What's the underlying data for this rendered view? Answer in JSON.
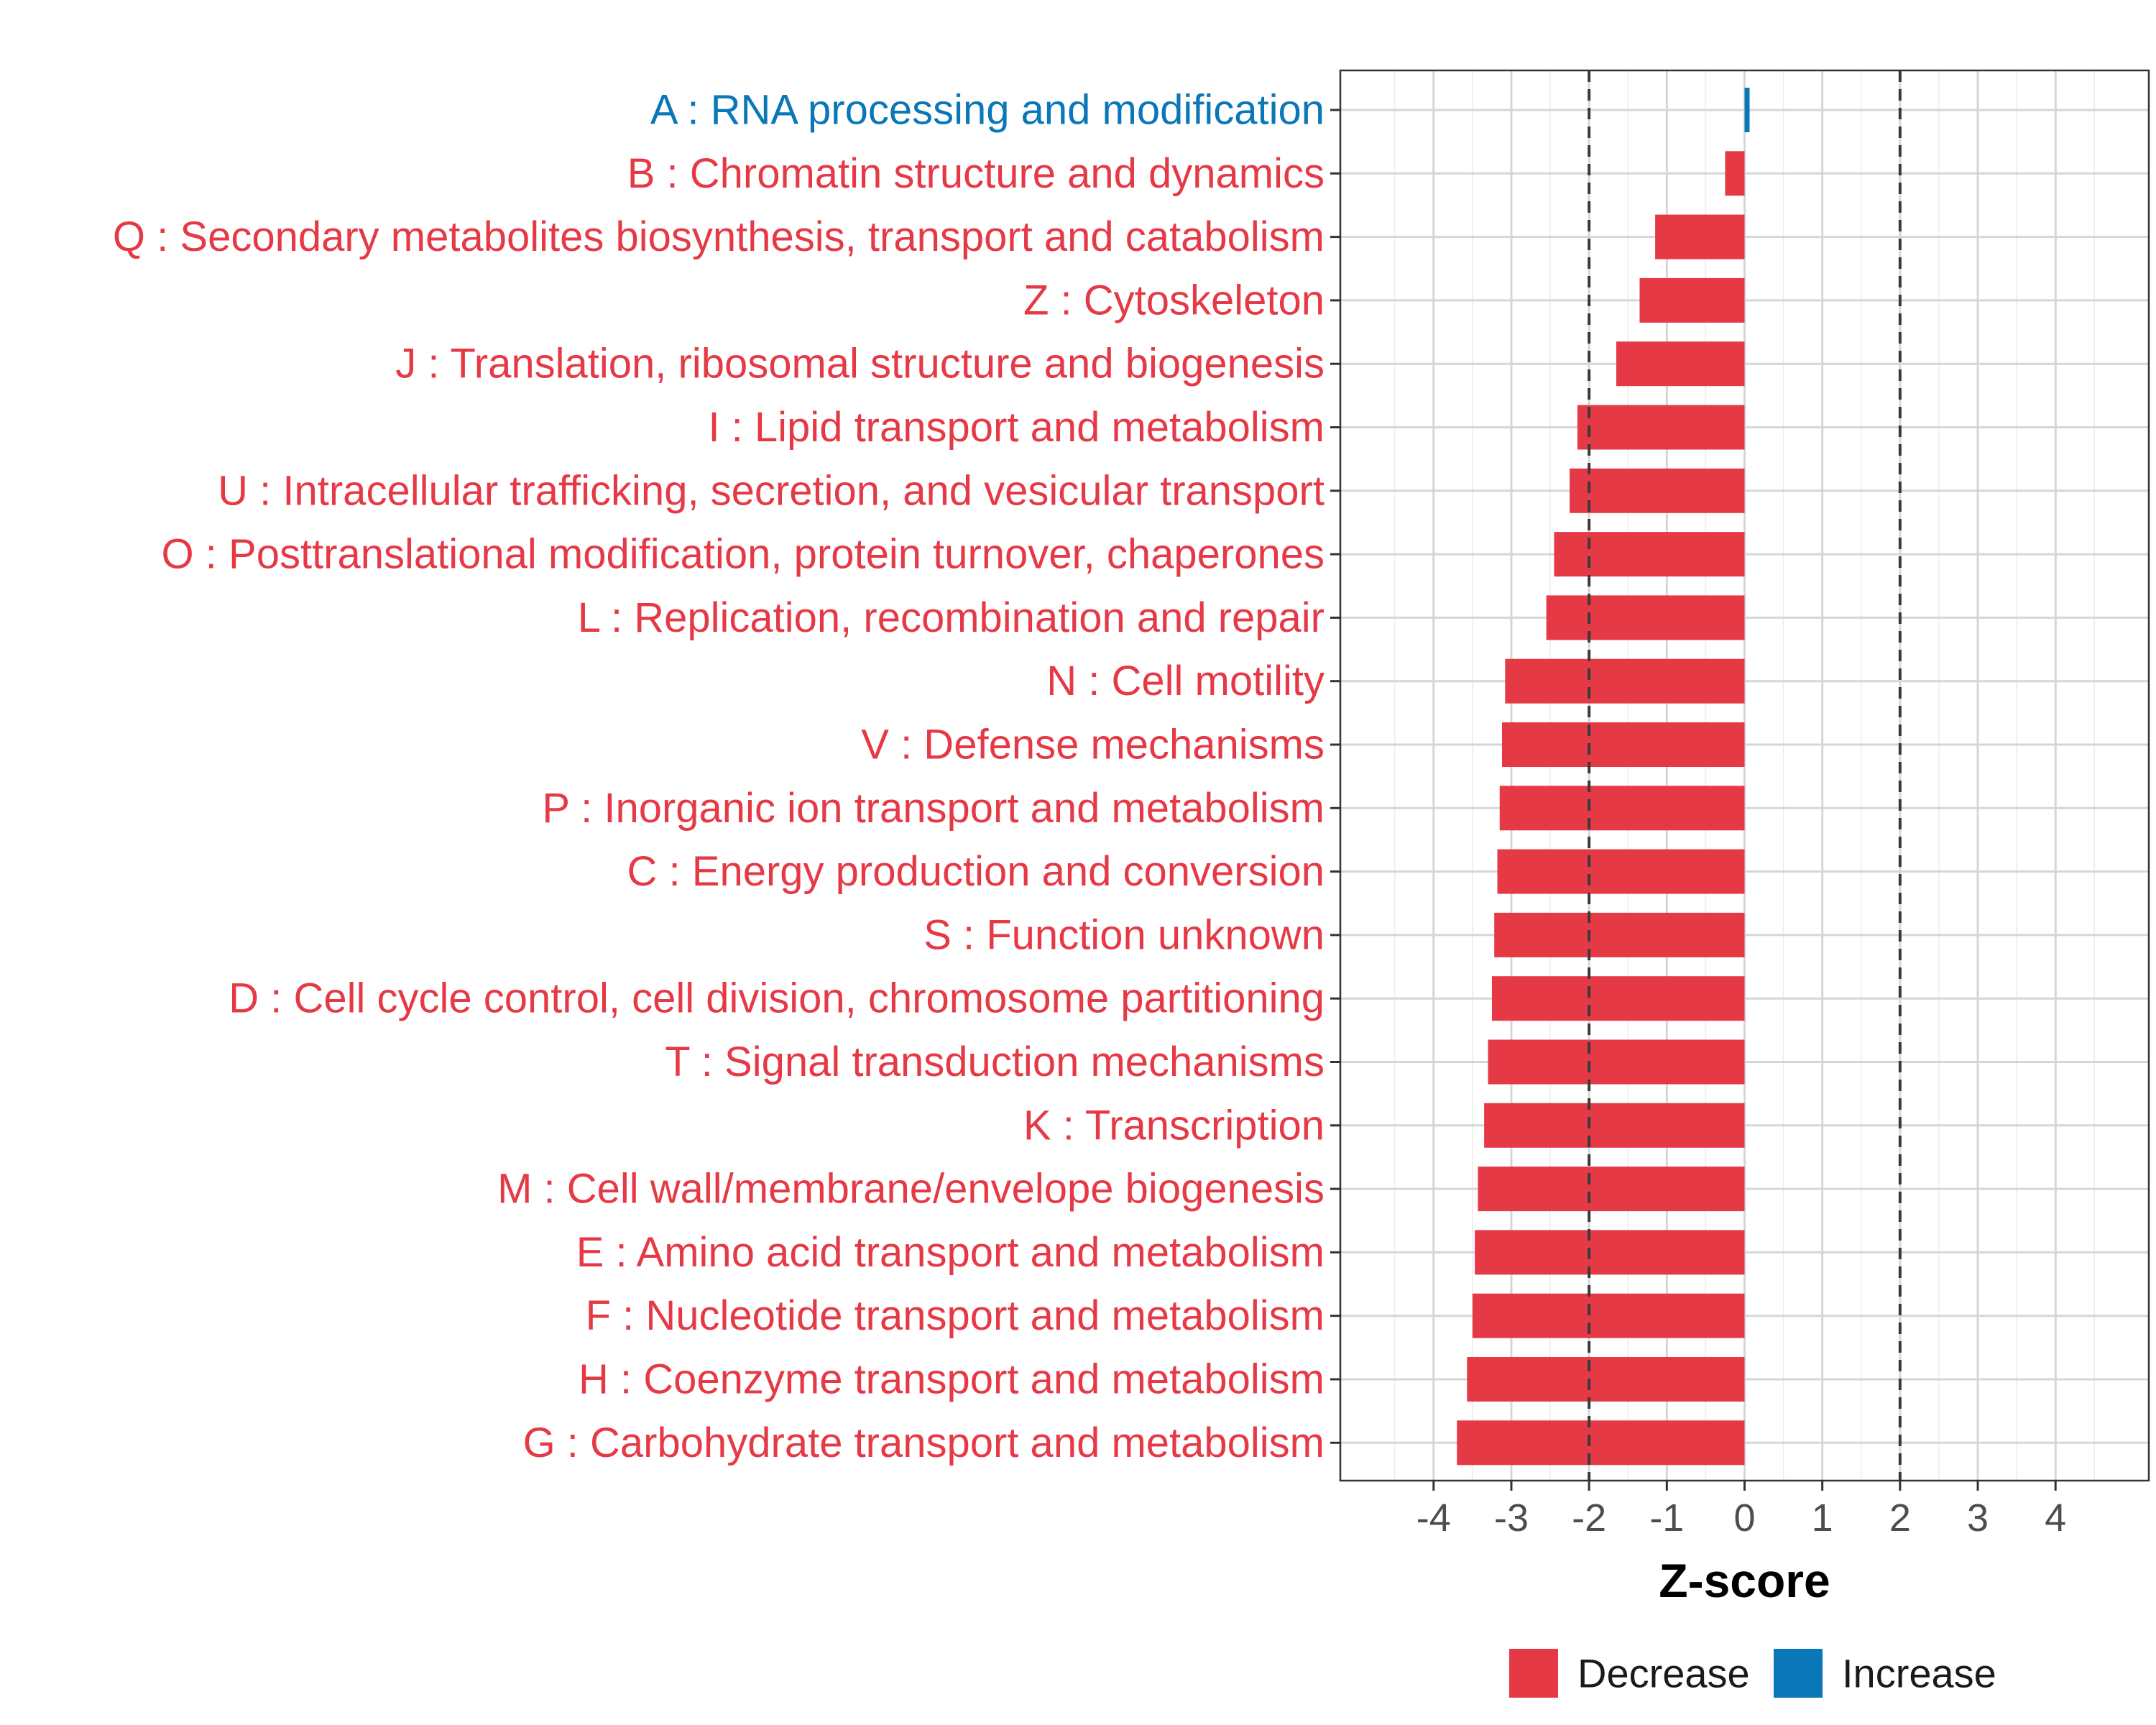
{
  "colors": {
    "decrease": "#e63946",
    "increase": "#0a77b8"
  },
  "chart_data": {
    "type": "bar",
    "orientation": "horizontal",
    "title": "",
    "xlabel": "Z-score",
    "ylabel": "",
    "xlim": [
      -5.2,
      5.2
    ],
    "xticks": [
      -4,
      -3,
      -2,
      -1,
      0,
      1,
      2,
      3,
      4
    ],
    "threshold_lines": [
      -2,
      2
    ],
    "grid": true,
    "legend_position": "bottom",
    "legend": [
      {
        "label": "Decrease",
        "color": "#e63946"
      },
      {
        "label": "Increase",
        "color": "#0a77b8"
      }
    ],
    "categories": [
      "A : RNA processing and modification",
      "B : Chromatin structure and dynamics",
      "Q : Secondary metabolites biosynthesis, transport and catabolism",
      "Z : Cytoskeleton",
      "J : Translation, ribosomal structure and biogenesis",
      "I : Lipid transport and metabolism",
      "U : Intracellular trafficking, secretion, and vesicular transport",
      "O : Posttranslational modification, protein turnover, chaperones",
      "L : Replication, recombination and repair",
      "N : Cell motility",
      "V : Defense mechanisms",
      "P : Inorganic ion transport and metabolism",
      "C : Energy production and conversion",
      "S : Function unknown",
      "D : Cell cycle control, cell division, chromosome partitioning",
      "T : Signal transduction mechanisms",
      "K : Transcription",
      "M : Cell wall/membrane/envelope biogenesis",
      "E : Amino acid transport and metabolism",
      "F : Nucleotide transport and metabolism",
      "H : Coenzyme transport and metabolism",
      "G : Carbohydrate transport and metabolism"
    ],
    "values": [
      0.05,
      -0.25,
      -1.15,
      -1.35,
      -1.65,
      -2.15,
      -2.25,
      -2.45,
      -2.55,
      -3.08,
      -3.12,
      -3.15,
      -3.18,
      -3.22,
      -3.25,
      -3.3,
      -3.35,
      -3.43,
      -3.47,
      -3.5,
      -3.57,
      -3.7
    ],
    "direction": [
      "Increase",
      "Decrease",
      "Decrease",
      "Decrease",
      "Decrease",
      "Decrease",
      "Decrease",
      "Decrease",
      "Decrease",
      "Decrease",
      "Decrease",
      "Decrease",
      "Decrease",
      "Decrease",
      "Decrease",
      "Decrease",
      "Decrease",
      "Decrease",
      "Decrease",
      "Decrease",
      "Decrease",
      "Decrease"
    ]
  }
}
